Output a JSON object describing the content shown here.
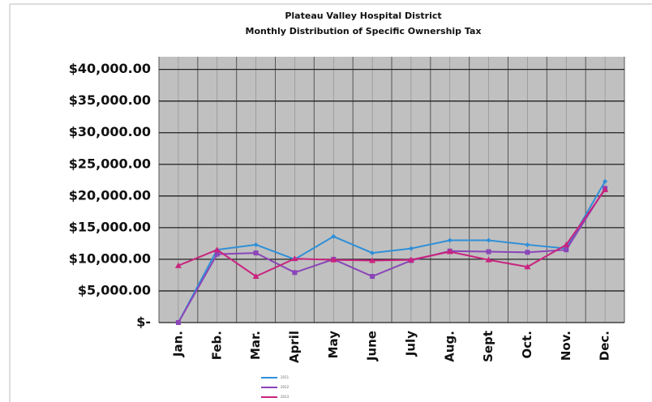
{
  "chart_data": {
    "type": "line",
    "title": "Plateau Valley Hospital District",
    "subtitle": "Monthly Distribution of Specific Ownership Tax",
    "categories": [
      "Jan.",
      "Feb.",
      "Mar.",
      "April",
      "May",
      "June",
      "July",
      "Aug.",
      "Sept",
      "Oct.",
      "Nov.",
      "Dec."
    ],
    "series": [
      {
        "name": "2011",
        "color": "#2f8fd8",
        "values": [
          0,
          11500,
          12300,
          10000,
          13600,
          11000,
          11700,
          13000,
          13000,
          12300,
          11700,
          22300
        ]
      },
      {
        "name": "2012",
        "color": "#8a45b8",
        "values": [
          0,
          10800,
          11000,
          7900,
          10000,
          7300,
          9800,
          11300,
          11200,
          11100,
          11500,
          21200
        ]
      },
      {
        "name": "2013",
        "color": "#c8237e",
        "values": [
          9000,
          11500,
          7300,
          10100,
          9900,
          9800,
          9900,
          11200,
          9900,
          8800,
          12300,
          21000
        ]
      }
    ],
    "ylim": [
      0,
      42000
    ],
    "yticks": [
      {
        "value": 0,
        "label": "$-"
      },
      {
        "value": 5000,
        "label": "$5,000.00"
      },
      {
        "value": 10000,
        "label": "$10,000.00"
      },
      {
        "value": 15000,
        "label": "$15,000.00"
      },
      {
        "value": 20000,
        "label": "$20,000.00"
      },
      {
        "value": 25000,
        "label": "$25,000.00"
      },
      {
        "value": 30000,
        "label": "$30,000.00"
      },
      {
        "value": 35000,
        "label": "$35,000.00"
      },
      {
        "value": 40000,
        "label": "$40,000.00"
      }
    ],
    "grid": true
  }
}
